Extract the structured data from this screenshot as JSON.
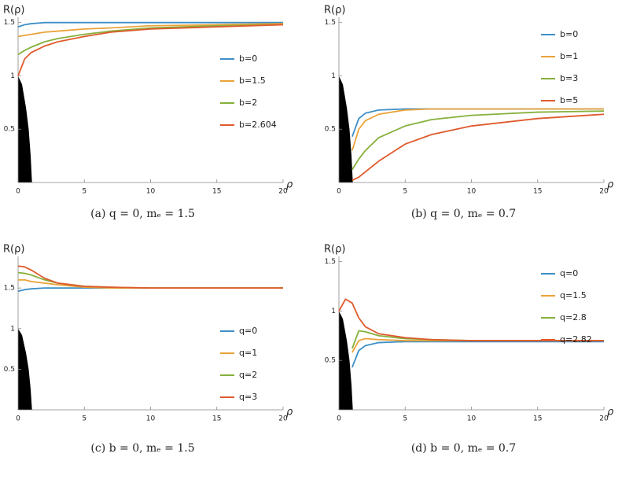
{
  "chart_data": [
    {
      "type": "line",
      "caption": "(a) q = 0,  mₑ = 1.5",
      "xlabel": "ρ",
      "ylabel": "R(ρ)",
      "x": [
        0,
        0.5,
        1,
        2,
        3,
        5,
        7,
        10,
        15,
        20
      ],
      "xlim": [
        0,
        20
      ],
      "xticks": [
        0,
        5,
        10,
        15,
        20
      ],
      "ylim": [
        0,
        1.52
      ],
      "yticks": [
        0.5,
        1,
        1.5
      ],
      "legend": "center right",
      "shaded_region": {
        "color": "#000000",
        "x": [
          0,
          0.3,
          0.6,
          0.8,
          0.95,
          1.05,
          0
        ],
        "y": [
          1,
          0.92,
          0.7,
          0.5,
          0.25,
          0,
          0
        ]
      },
      "series": [
        {
          "name": "b=0",
          "color": "#3d8fc6",
          "values": [
            1.46,
            1.48,
            1.49,
            1.5,
            1.5,
            1.5,
            1.5,
            1.5,
            1.5,
            1.5
          ]
        },
        {
          "name": "b=1.5",
          "color": "#eaa33a",
          "values": [
            1.37,
            1.38,
            1.39,
            1.41,
            1.42,
            1.44,
            1.45,
            1.47,
            1.48,
            1.49
          ]
        },
        {
          "name": "b=2",
          "color": "#86b03c",
          "values": [
            1.2,
            1.24,
            1.27,
            1.32,
            1.35,
            1.39,
            1.42,
            1.45,
            1.47,
            1.48
          ]
        },
        {
          "name": "b=2.604",
          "color": "#df5a2c",
          "values": [
            1.0,
            1.16,
            1.22,
            1.28,
            1.32,
            1.37,
            1.41,
            1.44,
            1.46,
            1.48
          ]
        }
      ]
    },
    {
      "type": "line",
      "caption": "(b) q = 0,  mₑ = 0.7",
      "xlabel": "ρ",
      "ylabel": "R(ρ)",
      "x": [
        0,
        0.5,
        1,
        1.5,
        2,
        3,
        5,
        7,
        10,
        15,
        20
      ],
      "xlim": [
        0,
        20
      ],
      "xticks": [
        0,
        5,
        10,
        15,
        20
      ],
      "ylim": [
        0,
        1.52
      ],
      "yticks": [
        0.5,
        1,
        1.5
      ],
      "legend": "upper right",
      "shaded_region": {
        "color": "#000000",
        "x": [
          0,
          0.3,
          0.6,
          0.8,
          0.95,
          1.05,
          0
        ],
        "y": [
          1,
          0.92,
          0.7,
          0.5,
          0.25,
          0,
          0
        ]
      },
      "series": [
        {
          "name": "b=0",
          "color": "#3d8fc6",
          "values": [
            null,
            null,
            0.43,
            0.6,
            0.65,
            0.68,
            0.69,
            0.69,
            0.69,
            0.69,
            0.69
          ]
        },
        {
          "name": "b=1",
          "color": "#eaa33a",
          "values": [
            null,
            null,
            0.3,
            0.5,
            0.58,
            0.64,
            0.68,
            0.69,
            0.69,
            0.69,
            0.69
          ]
        },
        {
          "name": "b=3",
          "color": "#86b03c",
          "values": [
            null,
            null,
            0.12,
            0.22,
            0.3,
            0.42,
            0.53,
            0.59,
            0.63,
            0.66,
            0.67
          ]
        },
        {
          "name": "b=5",
          "color": "#df5a2c",
          "values": [
            null,
            null,
            0.02,
            0.05,
            0.1,
            0.2,
            0.36,
            0.45,
            0.53,
            0.6,
            0.64
          ]
        }
      ]
    },
    {
      "type": "line",
      "caption": "(c) b = 0,  mₑ = 1.5",
      "xlabel": "ρ",
      "ylabel": "R(ρ)",
      "x": [
        0,
        0.5,
        1,
        2,
        3,
        5,
        7,
        10,
        15,
        20
      ],
      "xlim": [
        0,
        20
      ],
      "xticks": [
        0,
        5,
        10,
        15,
        20
      ],
      "ylim": [
        0,
        1.85
      ],
      "yticks": [
        0.5,
        1,
        1.5
      ],
      "legend": "lower right",
      "shaded_region": {
        "color": "#000000",
        "x": [
          0,
          0.3,
          0.6,
          0.8,
          0.95,
          1.05,
          0
        ],
        "y": [
          1,
          0.92,
          0.7,
          0.5,
          0.25,
          0,
          0
        ]
      },
      "series": [
        {
          "name": "q=0",
          "color": "#3d8fc6",
          "values": [
            1.46,
            1.48,
            1.49,
            1.5,
            1.5,
            1.5,
            1.5,
            1.5,
            1.5,
            1.5
          ]
        },
        {
          "name": "q=1",
          "color": "#eaa33a",
          "values": [
            1.6,
            1.6,
            1.58,
            1.56,
            1.54,
            1.51,
            1.5,
            1.5,
            1.5,
            1.5
          ]
        },
        {
          "name": "q=2",
          "color": "#86b03c",
          "values": [
            1.69,
            1.68,
            1.66,
            1.6,
            1.56,
            1.52,
            1.51,
            1.5,
            1.5,
            1.5
          ]
        },
        {
          "name": "q=3",
          "color": "#df5a2c",
          "values": [
            1.77,
            1.76,
            1.72,
            1.62,
            1.56,
            1.52,
            1.51,
            1.5,
            1.5,
            1.5
          ]
        }
      ]
    },
    {
      "type": "line",
      "caption": "(d) b = 0,  mₑ = 0.7",
      "xlabel": "ρ",
      "ylabel": "R(ρ)",
      "x": [
        0,
        0.5,
        1,
        1.5,
        2,
        3,
        5,
        7,
        10,
        15,
        20
      ],
      "xlim": [
        0,
        20
      ],
      "xticks": [
        0,
        5,
        10,
        15,
        20
      ],
      "ylim": [
        0,
        1.52
      ],
      "yticks": [
        0.5,
        1,
        1.5
      ],
      "legend": "upper right",
      "shaded_region": {
        "color": "#000000",
        "x": [
          0,
          0.3,
          0.6,
          0.8,
          0.95,
          1.05,
          0
        ],
        "y": [
          1,
          0.92,
          0.7,
          0.5,
          0.25,
          0,
          0
        ]
      },
      "series": [
        {
          "name": "q=0",
          "color": "#3d8fc6",
          "values": [
            null,
            null,
            0.43,
            0.6,
            0.65,
            0.68,
            0.69,
            0.69,
            0.69,
            0.69,
            0.69
          ]
        },
        {
          "name": "q=1.5",
          "color": "#eaa33a",
          "values": [
            null,
            null,
            0.58,
            0.7,
            0.72,
            0.71,
            0.7,
            0.7,
            0.7,
            0.7,
            0.7
          ]
        },
        {
          "name": "q=2.8",
          "color": "#86b03c",
          "values": [
            null,
            null,
            0.62,
            0.8,
            0.79,
            0.75,
            0.72,
            0.71,
            0.7,
            0.7,
            0.7
          ]
        },
        {
          "name": "q=2.82",
          "color": "#df5a2c",
          "values": [
            1.0,
            1.12,
            1.08,
            0.93,
            0.84,
            0.77,
            0.73,
            0.71,
            0.7,
            0.7,
            0.7
          ]
        }
      ]
    }
  ]
}
